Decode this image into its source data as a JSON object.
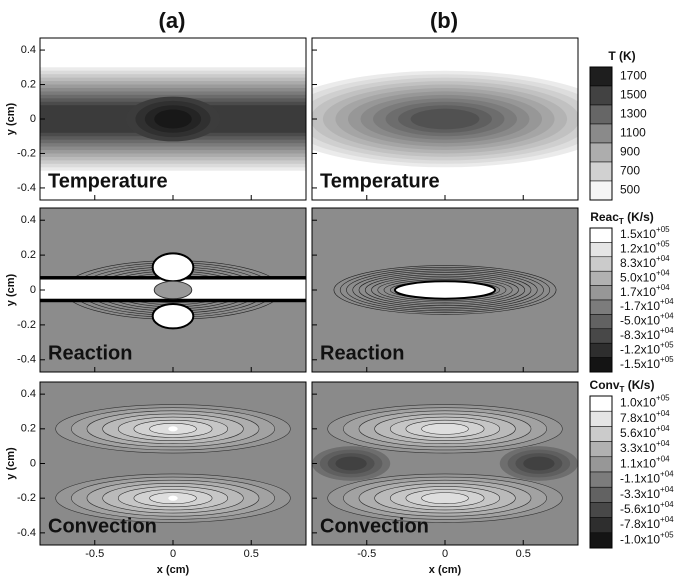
{
  "panel_labels": [
    "(a)",
    "(b)"
  ],
  "rows": [
    {
      "label": "Temperature"
    },
    {
      "label": "Reaction"
    },
    {
      "label": "Convection"
    }
  ],
  "y_axis": {
    "label": "y (cm)",
    "range": [
      -0.47,
      0.47
    ],
    "ticks": [
      0.4,
      0.2,
      0,
      -0.2,
      -0.4
    ]
  },
  "x_axis": {
    "label": "x (cm)",
    "range": [
      -0.85,
      0.85
    ],
    "ticks": [
      -0.5,
      0,
      0.5
    ]
  },
  "colorbars": [
    {
      "title": {
        "base": "T (K)"
      },
      "labels": [
        {
          "mantissa": "1700"
        },
        {
          "mantissa": "1500"
        },
        {
          "mantissa": "1300"
        },
        {
          "mantissa": "1100"
        },
        {
          "mantissa": "900"
        },
        {
          "mantissa": "700"
        },
        {
          "mantissa": "500"
        }
      ]
    },
    {
      "title": {
        "base": "Reac",
        "sub": "T",
        "unit": " (K/s)"
      },
      "labels": [
        {
          "mantissa": "1.5x10",
          "exponent": "+05"
        },
        {
          "mantissa": "1.2x10",
          "exponent": "+05"
        },
        {
          "mantissa": "8.3x10",
          "exponent": "+04"
        },
        {
          "mantissa": "5.0x10",
          "exponent": "+04"
        },
        {
          "mantissa": "1.7x10",
          "exponent": "+04"
        },
        {
          "mantissa": "-1.7x10",
          "exponent": "+04"
        },
        {
          "mantissa": "-5.0x10",
          "exponent": "+04"
        },
        {
          "mantissa": "-8.3x10",
          "exponent": "+04"
        },
        {
          "mantissa": "-1.2x10",
          "exponent": "+05"
        },
        {
          "mantissa": "-1.5x10",
          "exponent": "+05"
        }
      ]
    },
    {
      "title": {
        "base": "Conv",
        "sub": "T",
        "unit": " (K/s)"
      },
      "labels": [
        {
          "mantissa": "1.0x10",
          "exponent": "+05"
        },
        {
          "mantissa": "7.8x10",
          "exponent": "+04"
        },
        {
          "mantissa": "5.6x10",
          "exponent": "+04"
        },
        {
          "mantissa": "3.3x10",
          "exponent": "+04"
        },
        {
          "mantissa": "1.1x10",
          "exponent": "+04"
        },
        {
          "mantissa": "-1.1x10",
          "exponent": "+04"
        },
        {
          "mantissa": "-3.3x10",
          "exponent": "+04"
        },
        {
          "mantissa": "-5.6x10",
          "exponent": "+04"
        },
        {
          "mantissa": "-7.8x10",
          "exponent": "+04"
        },
        {
          "mantissa": "-1.0x10",
          "exponent": "+05"
        }
      ]
    }
  ]
}
